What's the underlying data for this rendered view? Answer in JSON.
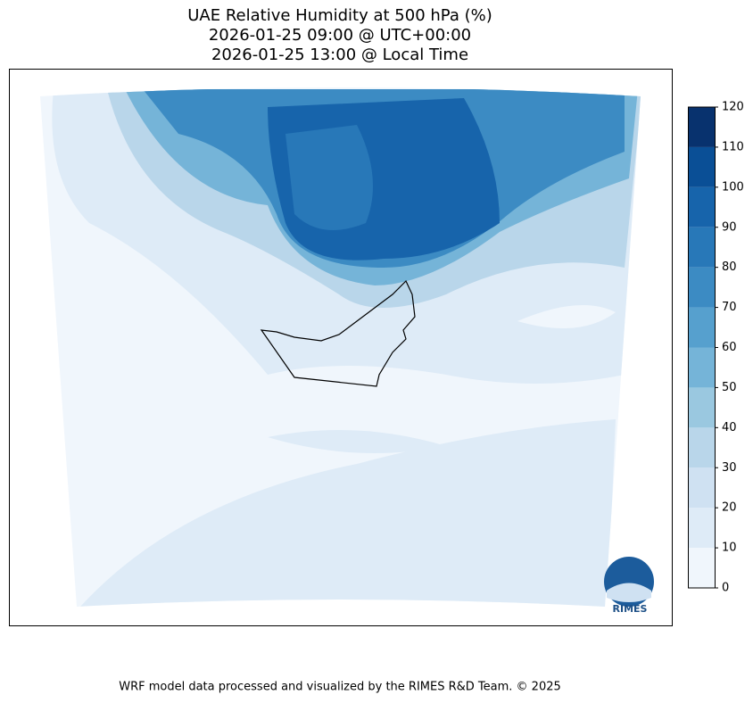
{
  "title": [
    "UAE Relative Humidity at 500 hPa (%)",
    "2026-01-25 09:00 @ UTC+00:00",
    "2026-01-25 13:00 @ Local Time"
  ],
  "colorbar": {
    "ticks": [
      0,
      10,
      20,
      30,
      40,
      50,
      60,
      70,
      80,
      90,
      100,
      110,
      120
    ],
    "colors": [
      "#f0f6fc",
      "#deebf7",
      "#cfe1f2",
      "#b9d6ea",
      "#9ac8e0",
      "#75b4d8",
      "#56a0ce",
      "#3c8bc3",
      "#2878b8",
      "#1764ab",
      "#0a4f96",
      "#08326e"
    ]
  },
  "logo": "RIMES",
  "footer": "WRF model data processed and visualized by the RIMES R&D Team. © 2025"
}
